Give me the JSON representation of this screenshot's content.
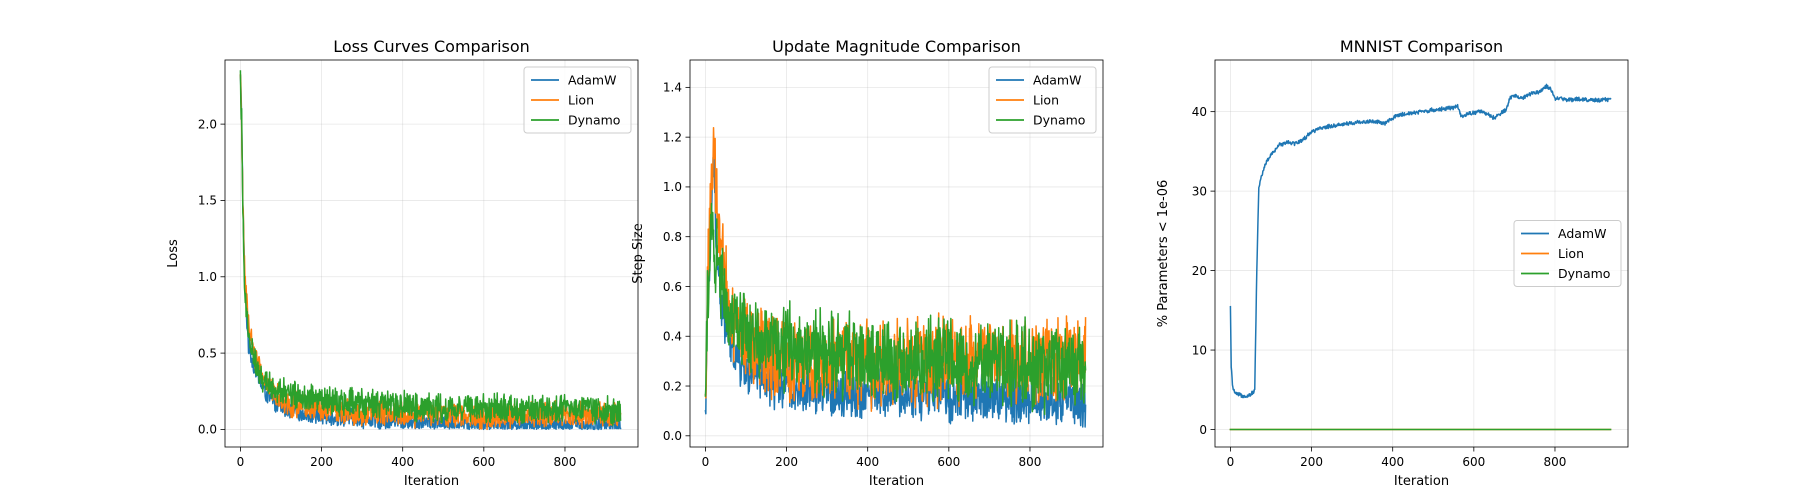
{
  "colors": {
    "AdamW": "#1f77b4",
    "Lion": "#ff7f0e",
    "Dynamo": "#2ca02c"
  },
  "chart_data": [
    {
      "id": "loss",
      "type": "line",
      "title": "Loss Curves Comparison",
      "xlabel": "Iteration",
      "ylabel": "Loss",
      "xlim": [
        -38,
        980
      ],
      "ylim": [
        -0.115,
        2.42
      ],
      "xticks": [
        0,
        200,
        400,
        600,
        800
      ],
      "yticks": [
        0.0,
        0.5,
        1.0,
        1.5,
        2.0
      ],
      "ytick_labels": [
        "0.0",
        "0.5",
        "1.0",
        "1.5",
        "2.0"
      ],
      "grid": true,
      "legend": "upper right",
      "series": [
        {
          "name": "AdamW",
          "x": [
            0,
            3,
            6,
            10,
            15,
            20,
            30,
            40,
            50,
            60,
            80,
            100,
            120,
            150,
            200,
            250,
            300,
            350,
            400,
            450,
            500,
            550,
            600,
            650,
            700,
            750,
            800,
            850,
            900,
            937
          ],
          "y": [
            2.3,
            2.05,
            1.5,
            1.0,
            0.75,
            0.55,
            0.45,
            0.38,
            0.3,
            0.25,
            0.18,
            0.15,
            0.13,
            0.11,
            0.09,
            0.08,
            0.07,
            0.06,
            0.05,
            0.05,
            0.045,
            0.045,
            0.04,
            0.04,
            0.035,
            0.035,
            0.035,
            0.03,
            0.03,
            0.03
          ],
          "noise": 0.035
        },
        {
          "name": "Lion",
          "x": [
            0,
            3,
            6,
            10,
            15,
            20,
            30,
            40,
            50,
            60,
            80,
            100,
            120,
            150,
            200,
            250,
            300,
            350,
            400,
            450,
            500,
            550,
            600,
            650,
            700,
            750,
            800,
            850,
            900,
            937
          ],
          "y": [
            2.3,
            2.0,
            1.5,
            1.1,
            0.85,
            0.7,
            0.55,
            0.45,
            0.38,
            0.32,
            0.25,
            0.2,
            0.17,
            0.15,
            0.13,
            0.12,
            0.11,
            0.11,
            0.1,
            0.1,
            0.1,
            0.1,
            0.09,
            0.09,
            0.09,
            0.09,
            0.09,
            0.09,
            0.09,
            0.09
          ],
          "noise": 0.05
        },
        {
          "name": "Dynamo",
          "x": [
            0,
            3,
            6,
            10,
            15,
            20,
            30,
            40,
            50,
            60,
            80,
            100,
            120,
            150,
            200,
            250,
            300,
            350,
            400,
            450,
            500,
            550,
            600,
            650,
            700,
            750,
            800,
            850,
            900,
            937
          ],
          "y": [
            2.3,
            2.0,
            1.4,
            1.0,
            0.75,
            0.6,
            0.5,
            0.42,
            0.36,
            0.32,
            0.28,
            0.25,
            0.23,
            0.21,
            0.19,
            0.18,
            0.17,
            0.16,
            0.15,
            0.15,
            0.14,
            0.14,
            0.14,
            0.13,
            0.13,
            0.13,
            0.13,
            0.13,
            0.12,
            0.12
          ],
          "noise": 0.055
        }
      ]
    },
    {
      "id": "update",
      "type": "line",
      "title": "Update Magnitude Comparison",
      "xlabel": "Iteration",
      "ylabel": "Step Size",
      "xlim": [
        -38,
        980
      ],
      "ylim": [
        -0.045,
        1.51
      ],
      "xticks": [
        0,
        200,
        400,
        600,
        800
      ],
      "yticks": [
        0.0,
        0.2,
        0.4,
        0.6,
        0.8,
        1.0,
        1.2,
        1.4
      ],
      "ytick_labels": [
        "0.0",
        "0.2",
        "0.4",
        "0.6",
        "0.8",
        "1.0",
        "1.2",
        "1.4"
      ],
      "grid": true,
      "legend": "upper right",
      "series": [
        {
          "name": "AdamW",
          "x": [
            0,
            5,
            10,
            15,
            20,
            30,
            40,
            60,
            80,
            100,
            150,
            200,
            300,
            400,
            500,
            600,
            700,
            800,
            900,
            937
          ],
          "y": [
            0.07,
            0.55,
            0.65,
            0.9,
            1.1,
            0.7,
            0.5,
            0.4,
            0.3,
            0.26,
            0.22,
            0.2,
            0.18,
            0.17,
            0.17,
            0.16,
            0.15,
            0.15,
            0.14,
            0.14
          ],
          "noise": 0.06
        },
        {
          "name": "Lion",
          "x": [
            0,
            5,
            10,
            15,
            20,
            30,
            40,
            60,
            80,
            100,
            150,
            200,
            300,
            400,
            500,
            600,
            700,
            800,
            900,
            937
          ],
          "y": [
            0.07,
            0.6,
            0.85,
            1.05,
            1.1,
            0.9,
            0.7,
            0.5,
            0.42,
            0.38,
            0.33,
            0.3,
            0.29,
            0.29,
            0.3,
            0.3,
            0.31,
            0.3,
            0.3,
            0.3
          ],
          "noise": 0.1
        },
        {
          "name": "Dynamo",
          "x": [
            0,
            5,
            10,
            15,
            20,
            30,
            40,
            60,
            80,
            100,
            150,
            200,
            300,
            400,
            500,
            600,
            700,
            800,
            900,
            937
          ],
          "y": [
            0.07,
            0.55,
            0.75,
            0.85,
            0.8,
            0.7,
            0.6,
            0.5,
            0.45,
            0.42,
            0.38,
            0.35,
            0.32,
            0.31,
            0.3,
            0.3,
            0.29,
            0.28,
            0.28,
            0.27
          ],
          "noise": 0.1
        }
      ]
    },
    {
      "id": "mnnist",
      "type": "line",
      "title": "MNNIST Comparison",
      "xlabel": "Iteration",
      "ylabel": "% Parameters < 1e-06",
      "xlim": [
        -38,
        980
      ],
      "ylim": [
        -2.2,
        46.5
      ],
      "xticks": [
        0,
        200,
        400,
        600,
        800
      ],
      "yticks": [
        0,
        10,
        20,
        30,
        40
      ],
      "ytick_labels": [
        "0",
        "10",
        "20",
        "30",
        "40"
      ],
      "grid": true,
      "legend": "center right",
      "series": [
        {
          "name": "AdamW",
          "x": [
            0,
            2,
            5,
            8,
            12,
            18,
            25,
            35,
            45,
            55,
            60,
            65,
            70,
            80,
            90,
            100,
            120,
            140,
            160,
            180,
            200,
            230,
            260,
            290,
            320,
            350,
            380,
            410,
            440,
            470,
            500,
            530,
            560,
            570,
            590,
            620,
            650,
            660,
            680,
            690,
            700,
            720,
            740,
            760,
            780,
            790,
            800,
            810,
            830,
            860,
            890,
            920,
            937
          ],
          "y": [
            15.3,
            8.0,
            5.5,
            5.0,
            4.5,
            4.4,
            4.3,
            4.2,
            4.3,
            4.6,
            5.0,
            20.0,
            30.5,
            32.5,
            33.8,
            34.5,
            35.8,
            36.2,
            36.0,
            36.5,
            37.5,
            38.0,
            38.3,
            38.5,
            38.7,
            38.8,
            38.5,
            39.5,
            39.8,
            40.0,
            40.2,
            40.4,
            40.6,
            39.3,
            39.8,
            40.0,
            39.2,
            39.5,
            40.3,
            41.8,
            42.0,
            41.7,
            42.3,
            42.5,
            43.2,
            42.8,
            41.5,
            41.7,
            41.5,
            41.6,
            41.4,
            41.5,
            41.5
          ],
          "noise": 0.15
        },
        {
          "name": "Lion",
          "x": [
            0,
            937
          ],
          "y": [
            0,
            0
          ],
          "noise": 0
        },
        {
          "name": "Dynamo",
          "x": [
            0,
            937
          ],
          "y": [
            0,
            0
          ],
          "noise": 0
        }
      ]
    }
  ]
}
